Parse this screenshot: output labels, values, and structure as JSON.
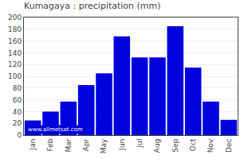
{
  "chart_data": {
    "type": "bar",
    "title": "Kumagaya : precipitation (mm)",
    "categories": [
      "Jan",
      "Feb",
      "Mar",
      "Apr",
      "May",
      "Jun",
      "Jul",
      "Aug",
      "Sep",
      "Oct",
      "Nov",
      "Dec"
    ],
    "values": [
      25,
      40,
      57,
      85,
      105,
      168,
      132,
      132,
      185,
      115,
      57,
      26
    ],
    "color": "#0000dd",
    "ylim": [
      0,
      200
    ],
    "yticks": [
      0,
      20,
      40,
      60,
      80,
      100,
      120,
      140,
      160,
      180,
      200
    ],
    "grid": true,
    "annotations": [
      "www.allmetsat.com"
    ]
  }
}
